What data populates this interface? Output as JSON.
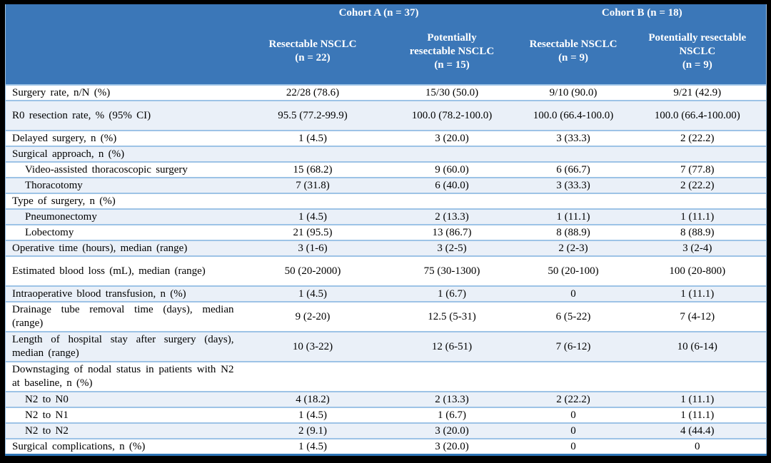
{
  "colors": {
    "header_bg": "#3B77B8",
    "header_text": "#FFFFFF",
    "row_border": "#9DC3E6",
    "shaded_row_bg": "#EAF0F8",
    "table_bottom_border": "#2E75B6",
    "frame": "#000000",
    "body_text": "#000000"
  },
  "table": {
    "header": {
      "cohorts": [
        "Cohort A (n = 37)",
        "Cohort B (n = 18)"
      ],
      "columns": [
        "Resectable NSCLC\n(n = 22)",
        "Potentially\nresectable NSCLC\n(n = 15)",
        "Resectable NSCLC\n(n = 9)",
        "Potentially resectable\nNSCLC\n(n = 9)"
      ]
    },
    "rows": [
      {
        "label": "Surgery rate, n/N (%)",
        "indent": false,
        "shaded": false,
        "tall": false,
        "values": [
          "22/28 (78.6)",
          "15/30 (50.0)",
          "9/10 (90.0)",
          "9/21 (42.9)"
        ]
      },
      {
        "label": "R0 resection rate, % (95% CI)",
        "indent": false,
        "shaded": true,
        "tall": true,
        "values": [
          "95.5 (77.2-99.9)",
          "100.0 (78.2-100.0)",
          "100.0 (66.4-100.0)",
          "100.0 (66.4-100.00)"
        ]
      },
      {
        "label": "Delayed surgery, n (%)",
        "indent": false,
        "shaded": false,
        "tall": false,
        "values": [
          "1 (4.5)",
          "3 (20.0)",
          "3 (33.3)",
          "2 (22.2)"
        ]
      },
      {
        "label": "Surgical approach, n (%)",
        "indent": false,
        "shaded": true,
        "tall": false,
        "values": [
          "",
          "",
          "",
          ""
        ]
      },
      {
        "label": "Video-assisted thoracoscopic surgery",
        "indent": true,
        "shaded": false,
        "tall": false,
        "values": [
          "15 (68.2)",
          "9 (60.0)",
          "6 (66.7)",
          "7 (77.8)"
        ]
      },
      {
        "label": "Thoracotomy",
        "indent": true,
        "shaded": true,
        "tall": false,
        "values": [
          "7 (31.8)",
          "6 (40.0)",
          "3 (33.3)",
          "2 (22.2)"
        ]
      },
      {
        "label": "Type of surgery, n (%)",
        "indent": false,
        "shaded": false,
        "tall": false,
        "values": [
          "",
          "",
          "",
          ""
        ]
      },
      {
        "label": "Pneumonectomy",
        "indent": true,
        "shaded": true,
        "tall": false,
        "values": [
          "1 (4.5)",
          "2 (13.3)",
          "1 (11.1)",
          "1 (11.1)"
        ]
      },
      {
        "label": "Lobectomy",
        "indent": true,
        "shaded": false,
        "tall": false,
        "values": [
          "21 (95.5)",
          "13 (86.7)",
          "8 (88.9)",
          "8 (88.9)"
        ]
      },
      {
        "label": "Operative time (hours), median (range)",
        "indent": false,
        "shaded": true,
        "tall": false,
        "values": [
          "3 (1-6)",
          "3 (2-5)",
          "2 (2-3)",
          "3 (2-4)"
        ]
      },
      {
        "label": "Estimated blood loss (mL), median (range)",
        "indent": false,
        "shaded": false,
        "tall": true,
        "values": [
          "50 (20-2000)",
          "75 (30-1300)",
          "50 (20-100)",
          "100 (20-800)"
        ]
      },
      {
        "label": "Intraoperative blood transfusion, n (%)",
        "indent": false,
        "shaded": true,
        "tall": false,
        "values": [
          "1 (4.5)",
          "1 (6.7)",
          "0",
          "1 (11.1)"
        ]
      },
      {
        "label": "Drainage tube removal time (days), median (range)",
        "indent": false,
        "shaded": false,
        "tall": true,
        "values": [
          "9 (2-20)",
          "12.5 (5-31)",
          "6 (5-22)",
          "7 (4-12)"
        ]
      },
      {
        "label": "Length of hospital stay after surgery (days), median (range)",
        "indent": false,
        "shaded": true,
        "tall": true,
        "values": [
          "10 (3-22)",
          "12 (6-51)",
          "7 (6-12)",
          "10 (6-14)"
        ]
      },
      {
        "label": "Downstaging of nodal status in patients with N2 at baseline, n (%)",
        "indent": false,
        "shaded": false,
        "tall": true,
        "values": [
          "",
          "",
          "",
          ""
        ]
      },
      {
        "label": "N2 to N0",
        "indent": true,
        "shaded": true,
        "tall": false,
        "values": [
          "4 (18.2)",
          "2 (13.3)",
          "2 (22.2)",
          "1 (11.1)"
        ]
      },
      {
        "label": "N2 to N1",
        "indent": true,
        "shaded": false,
        "tall": false,
        "values": [
          "1 (4.5)",
          "1 (6.7)",
          "0",
          "1 (11.1)"
        ]
      },
      {
        "label": "N2 to N2",
        "indent": true,
        "shaded": true,
        "tall": false,
        "values": [
          "2 (9.1)",
          "3 (20.0)",
          "0",
          "4 (44.4)"
        ]
      },
      {
        "label": "Surgical complications, n (%)",
        "indent": false,
        "shaded": false,
        "tall": false,
        "values": [
          "1 (4.5)",
          "3 (20.0)",
          "0",
          "0"
        ]
      }
    ]
  }
}
